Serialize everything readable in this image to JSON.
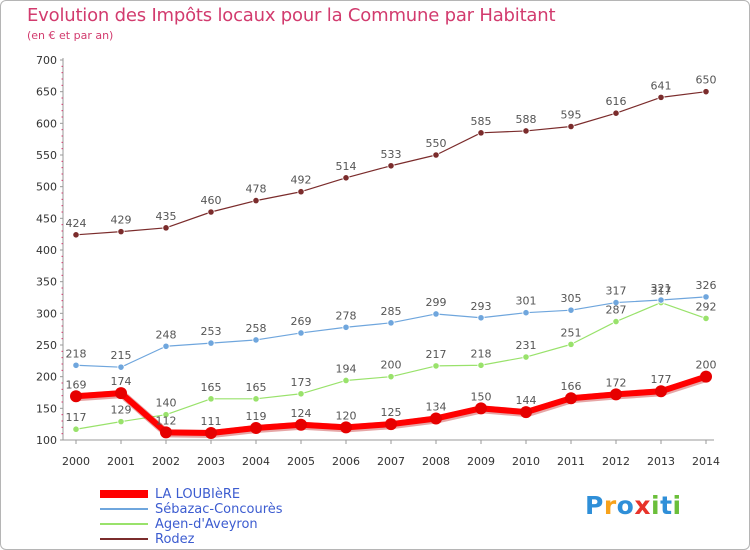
{
  "header": {
    "title": "Evolution des Impôts locaux pour la Commune par Habitant",
    "subtitle": "(en € et par an)"
  },
  "chart_data": {
    "type": "line",
    "title": "Evolution des Impôts locaux pour la Commune par Habitant",
    "subtitle": "(en € et par an)",
    "xlabel": "",
    "ylabel": "",
    "x": [
      2000,
      2001,
      2002,
      2003,
      2004,
      2005,
      2006,
      2007,
      2008,
      2009,
      2010,
      2011,
      2012,
      2013,
      2014
    ],
    "yticks": [
      100,
      150,
      200,
      250,
      300,
      350,
      400,
      450,
      500,
      550,
      600,
      650,
      700
    ],
    "ylim": [
      100,
      700
    ],
    "grid": false,
    "legend_position": "bottom-left",
    "series": [
      {
        "name": "LA LOUBIèRE",
        "color": "#ff0000",
        "values": [
          169,
          174,
          112,
          111,
          119,
          124,
          120,
          125,
          134,
          150,
          144,
          166,
          172,
          177,
          200
        ]
      },
      {
        "name": "Sébazac-Concourès",
        "color": "#6fa6dd",
        "values": [
          218,
          215,
          248,
          253,
          258,
          269,
          278,
          285,
          299,
          293,
          301,
          305,
          317,
          321,
          326
        ]
      },
      {
        "name": "Agen-d'Aveyron",
        "color": "#99e26b",
        "values": [
          117,
          129,
          140,
          165,
          165,
          173,
          194,
          200,
          217,
          218,
          231,
          251,
          287,
          317,
          292
        ]
      },
      {
        "name": "Rodez",
        "color": "#7b2c2c",
        "values": [
          424,
          429,
          435,
          460,
          478,
          492,
          514,
          533,
          550,
          585,
          588,
          595,
          616,
          641,
          650
        ]
      }
    ]
  },
  "logo": {
    "letters": [
      "P",
      "r",
      "o",
      "x",
      "i",
      "t",
      "i"
    ],
    "colors": [
      "#2f8fd8",
      "#f7a21b",
      "#2f8fd8",
      "#e8332a",
      "#6bbf3a",
      "#2f8fd8",
      "#6bbf3a"
    ]
  }
}
